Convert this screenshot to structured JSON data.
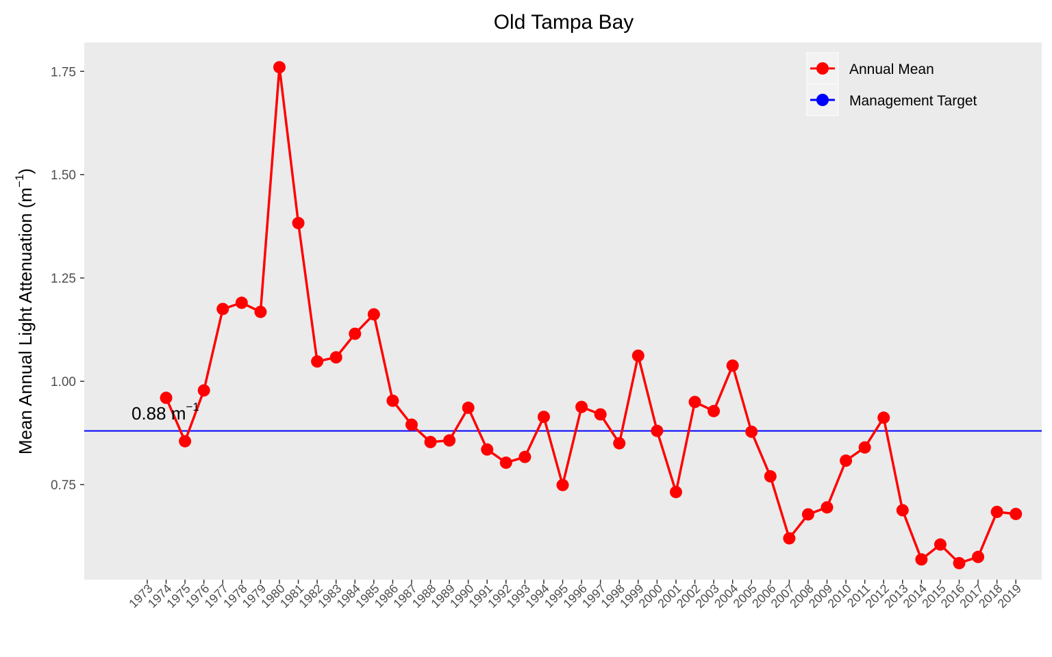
{
  "chart_data": {
    "type": "line",
    "title": "Old Tampa Bay",
    "ylabel": "Mean Annual Light Attenuation (m",
    "ylabel_sup": "−1",
    "ylabel_close": ")",
    "xlabel": "",
    "ylim": [
      0.52,
      1.82
    ],
    "yticks": [
      0.75,
      1.0,
      1.25,
      1.5,
      1.75
    ],
    "ytick_labels": [
      "0.75",
      "1.00",
      "1.25",
      "1.50",
      "1.75"
    ],
    "x_categories": [
      "1973",
      "1974",
      "1975",
      "1976",
      "1977",
      "1978",
      "1979",
      "1980",
      "1981",
      "1982",
      "1983",
      "1984",
      "1985",
      "1986",
      "1987",
      "1988",
      "1989",
      "1990",
      "1991",
      "1992",
      "1993",
      "1994",
      "1995",
      "1996",
      "1997",
      "1998",
      "1999",
      "2000",
      "2001",
      "2002",
      "2003",
      "2004",
      "2005",
      "2006",
      "2007",
      "2008",
      "2009",
      "2010",
      "2011",
      "2012",
      "2013",
      "2014",
      "2015",
      "2016",
      "2017",
      "2018",
      "2019"
    ],
    "grid": false,
    "background": "#ebebeb",
    "legend_position": "top-right",
    "series": [
      {
        "name": "Annual Mean",
        "color": "#ff0000",
        "x": [
          "1974",
          "1975",
          "1976",
          "1977",
          "1978",
          "1979",
          "1980",
          "1981",
          "1982",
          "1983",
          "1984",
          "1985",
          "1986",
          "1987",
          "1988",
          "1989",
          "1990",
          "1991",
          "1992",
          "1993",
          "1994",
          "1995",
          "1996",
          "1997",
          "1998",
          "1999",
          "2000",
          "2001",
          "2002",
          "2003",
          "2004",
          "2005",
          "2006",
          "2007",
          "2008",
          "2009",
          "2010",
          "2011",
          "2012",
          "2013",
          "2014",
          "2015",
          "2016",
          "2017",
          "2018",
          "2019"
        ],
        "values": [
          0.96,
          0.855,
          0.978,
          1.175,
          1.19,
          1.168,
          1.76,
          1.383,
          1.048,
          1.058,
          1.115,
          1.162,
          0.953,
          0.895,
          0.853,
          0.857,
          0.936,
          0.835,
          0.803,
          0.817,
          0.914,
          0.749,
          0.938,
          0.92,
          0.85,
          1.062,
          0.88,
          0.732,
          0.95,
          0.928,
          1.038,
          0.878,
          0.77,
          0.62,
          0.678,
          0.695,
          0.808,
          0.84,
          0.912,
          0.688,
          0.569,
          0.605,
          0.56,
          0.575,
          0.684,
          0.679
        ]
      },
      {
        "name": "Management Target",
        "color": "#0000ff",
        "value": 0.88
      }
    ],
    "annotation": {
      "text": "0.88 m",
      "sup": "−1"
    }
  }
}
